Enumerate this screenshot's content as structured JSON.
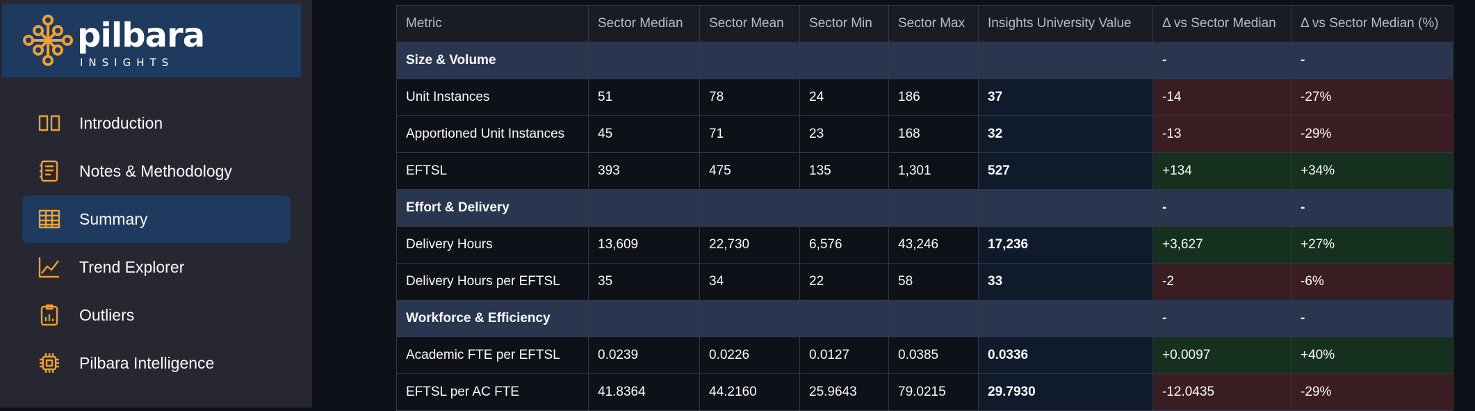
{
  "sidebar": {
    "logo": {
      "name": "pilbara",
      "tagline": "INSIGHTS"
    },
    "nav": [
      "Introduction",
      "Notes & Methodology",
      "Summary",
      "Trend Explorer",
      "Outliers",
      "Pilbara Intelligence"
    ],
    "active": 2
  },
  "table": {
    "columns": [
      "Metric",
      "Sector Median",
      "Sector Mean",
      "Sector Min",
      "Sector Max",
      "Insights University Value",
      "Δ vs Sector Median",
      "Δ vs Sector Median (%)"
    ],
    "sections": [
      {
        "label": "Size & Volume",
        "delta": "-",
        "delta_pct": "-",
        "rows": [
          [
            "Unit Instances",
            "51",
            "78",
            "24",
            "186",
            "37",
            "-14",
            "-27%"
          ],
          [
            "Apportioned Unit Instances",
            "45",
            "71",
            "23",
            "168",
            "32",
            "-13",
            "-29%"
          ],
          [
            "EFTSL",
            "393",
            "475",
            "135",
            "1,301",
            "527",
            "+134",
            "+34%"
          ]
        ]
      },
      {
        "label": "Effort & Delivery",
        "delta": "-",
        "delta_pct": "-",
        "rows": [
          [
            "Delivery Hours",
            "13,609",
            "22,730",
            "6,576",
            "43,246",
            "17,236",
            "+3,627",
            "+27%"
          ],
          [
            "Delivery Hours per EFTSL",
            "35",
            "34",
            "22",
            "58",
            "33",
            "-2",
            "-6%"
          ]
        ]
      },
      {
        "label": "Workforce & Efficiency",
        "delta": "-",
        "delta_pct": "-",
        "rows": [
          [
            "Academic FTE per EFTSL",
            "0.0239",
            "0.0226",
            "0.0127",
            "0.0385",
            "0.0336",
            "+0.0097",
            "+40%"
          ],
          [
            "EFTSL per AC FTE",
            "41.8364",
            "44.2160",
            "25.9643",
            "79.0215",
            "29.7930",
            "-12.0435",
            "-29%"
          ]
        ]
      }
    ]
  }
}
